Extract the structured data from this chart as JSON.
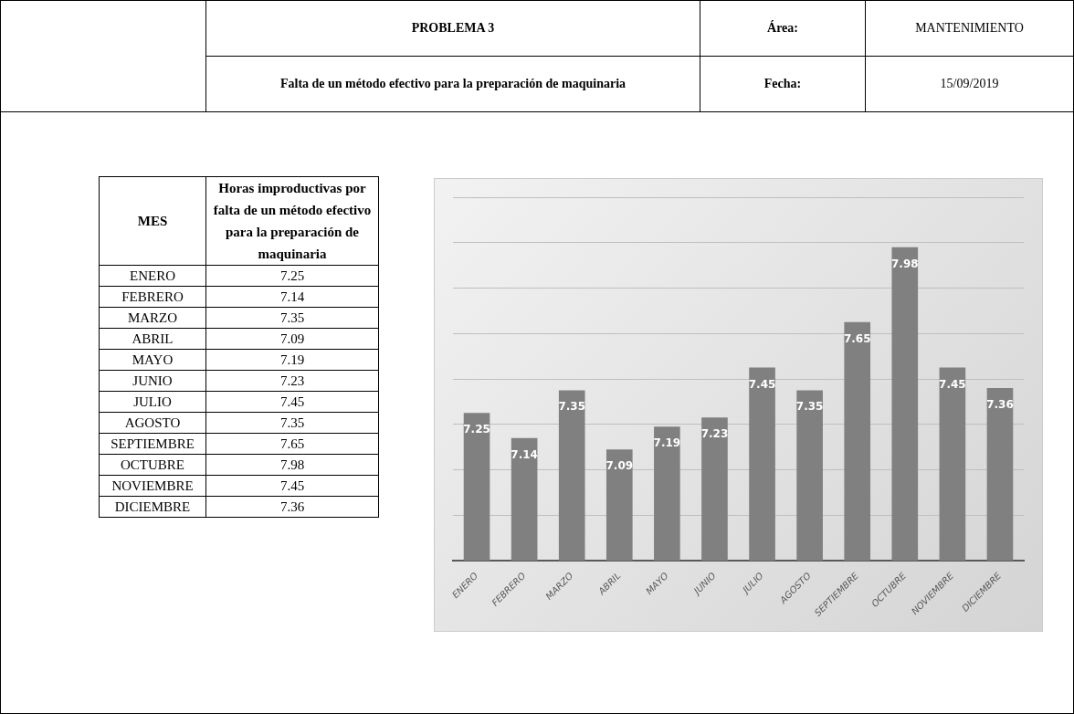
{
  "chart_data": [
    {
      "type": "other",
      "annotations": [
        "PROBLEMA 3",
        "Falta de un método efectivo para la preparación de maquinaria",
        "Área:",
        "MANTENIMIENTO",
        "Fecha:",
        "15/09/2019",
        "MES",
        "Horas improductivas por falta de un método efectivo para la preparación de maquinaria"
      ],
      "categories": [
        "ENERO",
        "FEBRERO",
        "MARZO",
        "ABRIL",
        "MAYO",
        "JUNIO",
        "JULIO",
        "AGOSTO",
        "SEPTIEMBRE",
        "OCTUBRE",
        "NOVIEMBRE",
        "DICIEMBRE"
      ],
      "values": [
        7.25,
        7.14,
        7.35,
        7.09,
        7.19,
        7.23,
        7.45,
        7.35,
        7.65,
        7.98,
        7.45,
        7.36
      ],
      "data_labels": true
    },
    {
      "type": "bar",
      "categories": [
        "ENERO",
        "FEBRERO",
        "MARZO",
        "ABRIL",
        "MAYO",
        "JUNIO",
        "JULIO",
        "AGOSTO",
        "SEPTIEMBRE",
        "OCTUBRE",
        "NOVIEMBRE",
        "DICIEMBRE"
      ],
      "values": [
        7.25,
        7.14,
        7.35,
        7.09,
        7.19,
        7.23,
        7.45,
        7.35,
        7.65,
        7.98,
        7.45,
        7.36
      ],
      "color": "#808080",
      "ylim": [
        6.6,
        8.2
      ],
      "yticks": [
        {
          "value": 6.6,
          "label": null
        },
        {
          "value": 6.8,
          "label": null
        },
        {
          "value": 7.0,
          "label": null
        },
        {
          "value": 7.2,
          "label": null
        },
        {
          "value": 7.4,
          "label": null
        },
        {
          "value": 7.6,
          "label": null
        },
        {
          "value": 7.8,
          "label": null
        },
        {
          "value": 8.0,
          "label": null
        },
        {
          "value": 8.2,
          "label": null
        }
      ],
      "tick_labels": "x",
      "grid": "y",
      "data_labels": true
    }
  ]
}
